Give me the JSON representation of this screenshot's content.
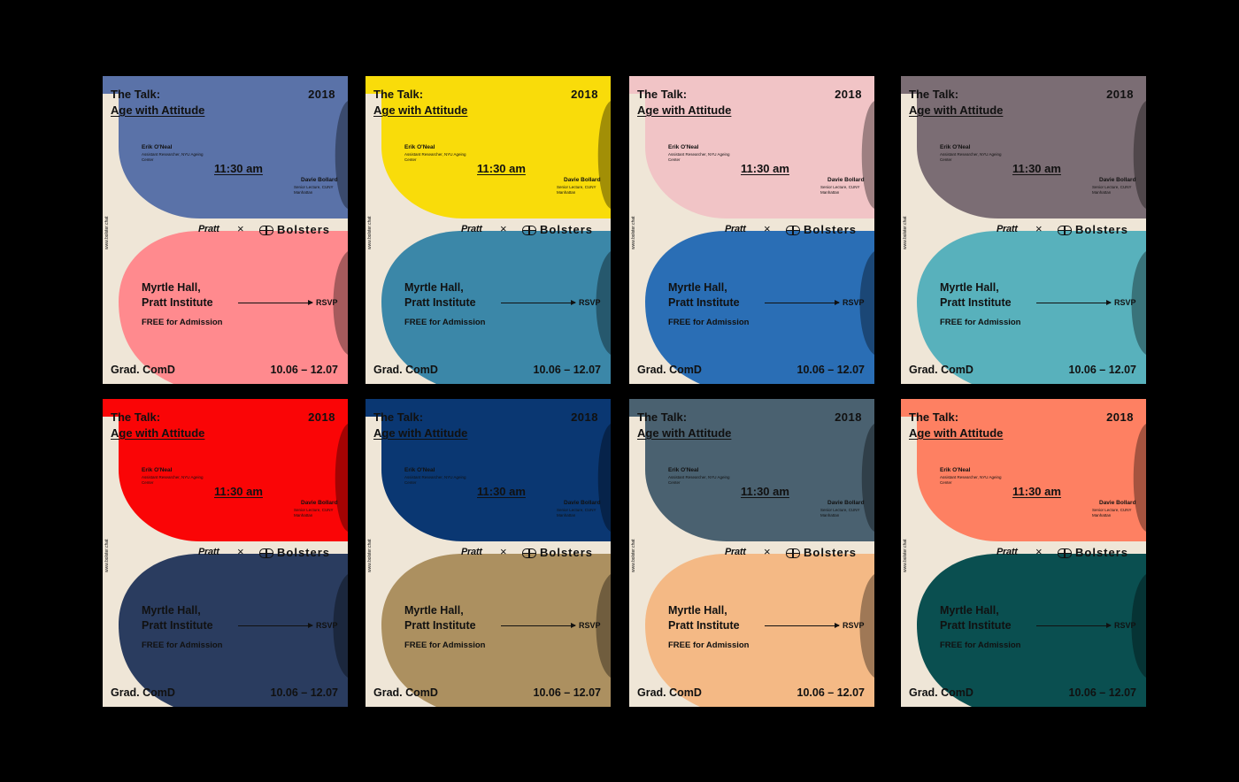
{
  "poster_text": {
    "title_line1": "The Talk:",
    "title_line2": "Age with Attitude",
    "year": "2018",
    "speaker1_name": "Erik O'Neal",
    "speaker1_role": "Assistant Researcher, NYU Ageing Center",
    "time": "11:30 am",
    "speaker2_name": "Davie Bollard",
    "speaker2_role": "Senior Lecture, CUNY Manhattan",
    "url": "www.bolster.chat",
    "brand_pratt": "Pratt",
    "brand_separator": "×",
    "brand_bolsters": "Bolsters",
    "venue_line1": "Myrtle Hall,",
    "venue_line2": "Pratt Institute",
    "rsvp": "RSVP",
    "admission": "FREE for Admission",
    "department": "Grad. ComD",
    "dates": "10.06 – 12.07"
  },
  "colors": {
    "background": "#000000",
    "paper": "#efe6d7"
  },
  "posters": [
    {
      "top_color": "#5a72a8",
      "bottom_color": "#ff8a8e"
    },
    {
      "top_color": "#f9dc0a",
      "bottom_color": "#3b87a8"
    },
    {
      "top_color": "#f1c4c6",
      "bottom_color": "#2a6eb5"
    },
    {
      "top_color": "#7b6d74",
      "bottom_color": "#58b1bc"
    },
    {
      "top_color": "#fa0506",
      "bottom_color": "#2a3c5f"
    },
    {
      "top_color": "#0a3772",
      "bottom_color": "#ac9060"
    },
    {
      "top_color": "#4a6170",
      "bottom_color": "#f4b985"
    },
    {
      "top_color": "#fe8062",
      "bottom_color": "#0a4f50"
    }
  ]
}
